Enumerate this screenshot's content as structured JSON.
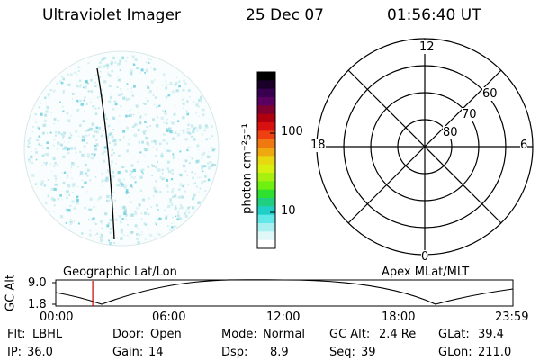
{
  "header": {
    "instrument": "Ultraviolet Imager",
    "date": "25 Dec 07",
    "time": "01:56:40 UT"
  },
  "colorbar": {
    "unit_label": "photon cm⁻²s⁻¹",
    "tick_labels": [
      "100",
      "10"
    ],
    "colors": [
      "#000000",
      "#1a0028",
      "#3a0050",
      "#5a0060",
      "#800030",
      "#b00010",
      "#d81010",
      "#ee4010",
      "#f07810",
      "#f0a810",
      "#e8d810",
      "#d8f010",
      "#a8f010",
      "#70f010",
      "#30e030",
      "#20d080",
      "#20d0c8",
      "#60e8e8",
      "#a8f0f0",
      "#e0f8f8",
      "#ffffff"
    ]
  },
  "polar": {
    "mlt_labels": {
      "top": "12",
      "bottom": "0",
      "left": "18",
      "right": "6"
    },
    "lat_labels": [
      "60",
      "70",
      "80"
    ]
  },
  "strip": {
    "ylabel": "GC Alt",
    "yticks": [
      "9.0",
      "1.8"
    ],
    "left_label": "Geographic Lat/Lon",
    "right_label": "Apex MLat/MLT",
    "xticks": [
      "00:00",
      "06:00",
      "12:00",
      "18:00",
      "23:59"
    ],
    "marker_time_hours": 1.944
  },
  "info": {
    "row1": [
      {
        "label": "Flt:",
        "value": "LBHL"
      },
      {
        "label": "Door:",
        "value": "Open"
      },
      {
        "label": "Mode:",
        "value": "Normal"
      },
      {
        "label": "GC Alt:",
        "value": "2.4 Re"
      },
      {
        "label": "GLat:",
        "value": "39.4"
      }
    ],
    "row2": [
      {
        "label": "IP:",
        "value": "36.0"
      },
      {
        "label": "Gain:",
        "value": "14"
      },
      {
        "label": "Dsp:",
        "value": "8.9"
      },
      {
        "label": "Seq:",
        "value": "39"
      },
      {
        "label": "GLon:",
        "value": "211.0"
      }
    ]
  },
  "colors": {
    "terminator": "#000000",
    "marker": "#cc0000",
    "speckle": "#8ad6de"
  }
}
